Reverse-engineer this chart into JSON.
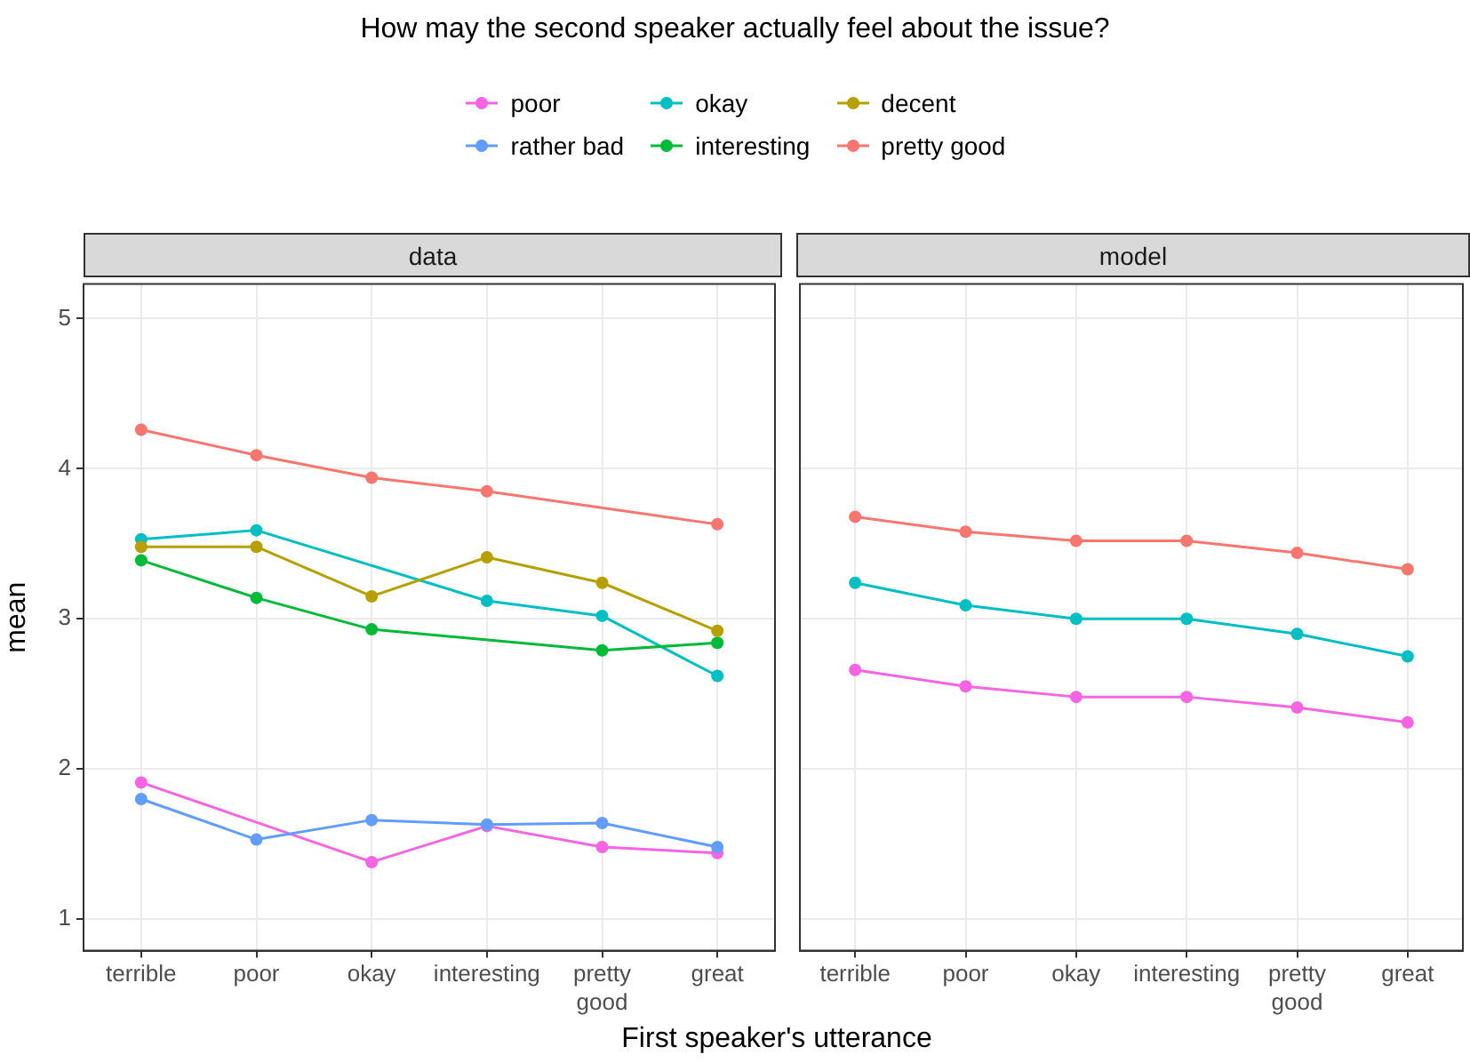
{
  "chart_data": [
    {
      "type": "line",
      "title": "How may the second speaker actually feel about the issue?",
      "subtitle": "data",
      "xlabel": "First speaker's utterance",
      "ylabel": "mean",
      "categories": [
        "terrible",
        "poor",
        "okay",
        "interesting",
        "pretty good",
        "great"
      ],
      "ylim": [
        0.79,
        5.23
      ],
      "yticks": [
        1,
        2,
        3,
        4,
        5
      ],
      "grid": true,
      "legend": "top",
      "marker": "circle",
      "series": [
        {
          "name": "poor",
          "color": "#f564e3",
          "values": [
            1.91,
            null,
            1.38,
            1.62,
            1.48,
            1.44
          ]
        },
        {
          "name": "rather bad",
          "color": "#619cff",
          "values": [
            1.8,
            1.53,
            1.66,
            1.63,
            1.64,
            1.48
          ]
        },
        {
          "name": "okay",
          "color": "#00bfc4",
          "values": [
            3.53,
            3.59,
            null,
            3.12,
            3.02,
            2.62
          ]
        },
        {
          "name": "interesting",
          "color": "#00ba38",
          "values": [
            3.39,
            3.14,
            2.93,
            null,
            2.79,
            2.84
          ]
        },
        {
          "name": "decent",
          "color": "#b79f00",
          "values": [
            3.48,
            3.48,
            3.15,
            3.41,
            3.24,
            2.92
          ]
        },
        {
          "name": "pretty good",
          "color": "#f8766d",
          "values": [
            4.26,
            4.09,
            3.94,
            3.85,
            null,
            3.63
          ]
        }
      ]
    },
    {
      "type": "line",
      "subtitle": "model",
      "categories": [
        "terrible",
        "poor",
        "okay",
        "interesting",
        "pretty good",
        "great"
      ],
      "ylim": [
        0.79,
        5.23
      ],
      "yticks": [
        1,
        2,
        3,
        4,
        5
      ],
      "grid": true,
      "legend": "top",
      "marker": "circle",
      "tick_labels": "x",
      "series": [
        {
          "name": "poor",
          "color": "#f564e3",
          "values": [
            2.66,
            2.55,
            2.48,
            2.48,
            2.41,
            2.31
          ]
        },
        {
          "name": "okay",
          "color": "#00bfc4",
          "values": [
            3.24,
            3.09,
            3.0,
            3.0,
            2.9,
            2.75
          ]
        },
        {
          "name": "pretty good",
          "color": "#f8766d",
          "values": [
            3.68,
            3.58,
            3.52,
            3.52,
            3.44,
            3.33
          ]
        }
      ]
    }
  ]
}
